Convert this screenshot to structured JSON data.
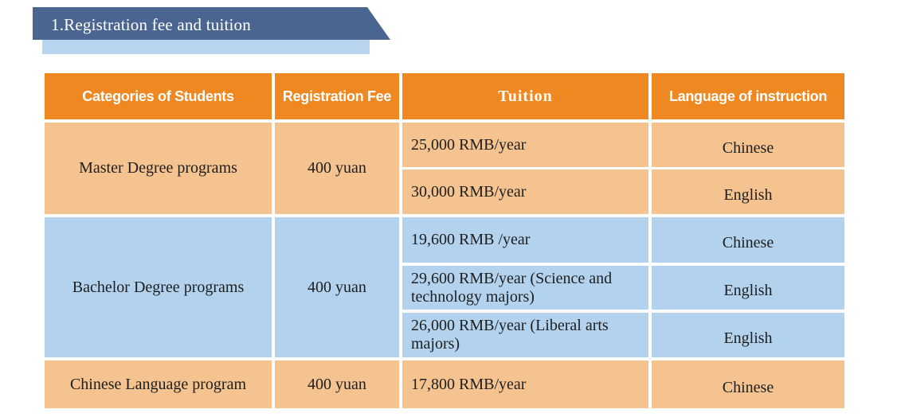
{
  "section": {
    "title": "1.Registration fee and tuition"
  },
  "table": {
    "headers": {
      "category": "Categories of Students",
      "registration_fee": "Registration Fee",
      "tuition": "Tuition",
      "language": "Language of instruction"
    },
    "groups": [
      {
        "category": "Master Degree programs",
        "registration_fee": "400 yuan",
        "rows": [
          {
            "tuition": "25,000 RMB/year",
            "language": "Chinese"
          },
          {
            "tuition": "30,000 RMB/year",
            "language": "English"
          }
        ]
      },
      {
        "category": "Bachelor Degree programs",
        "registration_fee": "400 yuan",
        "rows": [
          {
            "tuition": "19,600 RMB /year",
            "language": "Chinese"
          },
          {
            "tuition": "29,600 RMB/year (Science and technology majors)",
            "language": "English"
          },
          {
            "tuition": "26,000 RMB/year (Liberal arts majors)",
            "language": "English"
          }
        ]
      },
      {
        "category": "Chinese Language program",
        "registration_fee": "400 yuan",
        "rows": [
          {
            "tuition": "17,800 RMB/year",
            "language": "Chinese"
          }
        ]
      }
    ]
  },
  "colors": {
    "header": "#ef8820",
    "peach": "#f4c38f",
    "blue": "#b3d2ee",
    "title_bar": "#4a6690"
  }
}
